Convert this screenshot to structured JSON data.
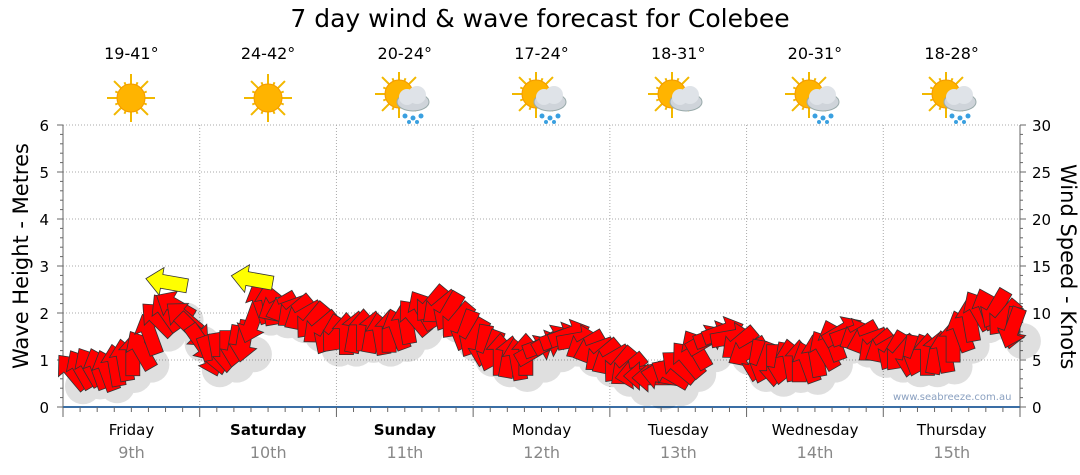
{
  "chart_data": {
    "type": "line",
    "title": "7 day wind & wave forecast for Colebee",
    "ylabel": "Wave Height - Metres",
    "y2label": "Wind Speed - Knots",
    "ylim": [
      0,
      6
    ],
    "y2lim": [
      0,
      30
    ],
    "yticks": [
      "0",
      "1",
      "2",
      "3",
      "4",
      "5",
      "6"
    ],
    "y2ticks": [
      "0",
      "5",
      "10",
      "15",
      "20",
      "25",
      "30"
    ],
    "grid": true,
    "days": [
      {
        "day": "Friday",
        "date": "9th",
        "temp": "19-41°",
        "icon": "sunny",
        "weekend": false
      },
      {
        "day": "Saturday",
        "date": "10th",
        "temp": "24-42°",
        "icon": "sunny",
        "weekend": true
      },
      {
        "day": "Sunday",
        "date": "11th",
        "temp": "20-24°",
        "icon": "sun-cloud-rain",
        "weekend": true
      },
      {
        "day": "Monday",
        "date": "12th",
        "temp": "17-24°",
        "icon": "sun-cloud-rain",
        "weekend": false
      },
      {
        "day": "Tuesday",
        "date": "13th",
        "temp": "18-31°",
        "icon": "sun-cloud",
        "weekend": false
      },
      {
        "day": "Wednesday",
        "date": "14th",
        "temp": "20-31°",
        "icon": "sun-cloud-rain",
        "weekend": false
      },
      {
        "day": "Thursday",
        "date": "15th",
        "temp": "18-28°",
        "icon": "sun-cloud-rain",
        "weekend": false
      }
    ],
    "wind_series": {
      "name": "Wind speed (knots), 3-hourly",
      "knots": [
        3.7,
        4.2,
        3.8,
        4.9,
        6.0,
        9.3,
        10.7,
        8.2,
        5.5,
        6.0,
        7.1,
        11.0,
        10.7,
        10.2,
        9.2,
        7.7,
        7.7,
        8.1,
        7.7,
        8.2,
        9.5,
        11.0,
        10.2,
        8.2,
        6.6,
        5.5,
        5.0,
        6.0,
        7.1,
        7.7,
        6.6,
        5.5,
        4.5,
        3.5,
        3.1,
        3.5,
        5.0,
        7.1,
        8.0,
        6.8,
        5.0,
        4.5,
        4.9,
        4.7,
        6.0,
        8.0,
        7.6,
        6.5,
        6.0,
        5.5,
        5.5,
        5.8,
        8.0,
        10.2,
        10.5,
        8.5
      ],
      "direction_deg": [
        40,
        30,
        20,
        10,
        30,
        45,
        60,
        225,
        200,
        180,
        170,
        20,
        120,
        130,
        140,
        150,
        0,
        0,
        10,
        20,
        40,
        140,
        150,
        160,
        170,
        0,
        10,
        300,
        300,
        290,
        120,
        130,
        140,
        100,
        90,
        60,
        40,
        300,
        290,
        130,
        170,
        180,
        10,
        20,
        30,
        300,
        120,
        130,
        150,
        170,
        0,
        10,
        20,
        30,
        150,
        170
      ],
      "highlight": [
        6,
        11
      ],
      "colors": {
        "normal": "#ff0000",
        "highlight": "#ffff00"
      }
    }
  },
  "watermark": "www.seabreeze.com.au"
}
